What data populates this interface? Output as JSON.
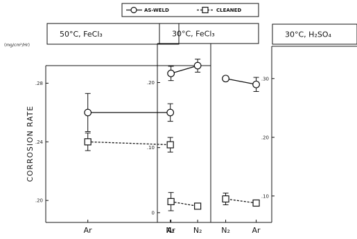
{
  "figure": {
    "units": "(mg/cm²/Hr)",
    "ylabel": "CORROSION RATE",
    "legend": {
      "as_weld": "AS-WELD",
      "cleaned": "CLEANED"
    }
  },
  "chart_data": [
    {
      "type": "line",
      "title": "50°C, FeCl₃",
      "categories": [
        "Ar",
        "N₂"
      ],
      "ylim": [
        0.185,
        0.292
      ],
      "yticks": [
        0.28,
        0.24,
        0.2
      ],
      "ytick_labels": [
        ".28",
        ".24",
        ".20"
      ],
      "series": [
        {
          "name": "AS-WELD",
          "values": [
            0.26,
            0.26
          ],
          "err": [
            0.013,
            0.006
          ]
        },
        {
          "name": "CLEANED",
          "values": [
            0.24,
            0.238
          ],
          "err": [
            0.006,
            0.005
          ]
        }
      ]
    },
    {
      "type": "line",
      "title": "30°C, FeCl₃",
      "categories": [
        "Ar",
        "N₂"
      ],
      "ylim": [
        -0.015,
        0.26
      ],
      "yticks": [
        0.2,
        0.1,
        0.0
      ],
      "ytick_labels": [
        ".20",
        ".10",
        "0"
      ],
      "series": [
        {
          "name": "AS-WELD",
          "values": [
            0.214,
            0.226
          ],
          "err": [
            0.011,
            0.01
          ]
        },
        {
          "name": "CLEANED",
          "values": [
            0.017,
            0.01
          ],
          "err": [
            0.014,
            0.003
          ]
        }
      ]
    },
    {
      "type": "line",
      "title": "30°C, H₂SO₄",
      "categories": [
        "Ar",
        "N₂"
      ],
      "ylim": [
        0.055,
        0.355
      ],
      "yticks": [
        0.3,
        0.2,
        0.1
      ],
      "ytick_labels": [
        ".30",
        ".20",
        ".10"
      ],
      "series": [
        {
          "name": "AS-WELD",
          "values": [
            0.29,
            0.3
          ],
          "err": [
            0.012,
            0.004
          ]
        },
        {
          "name": "CLEANED",
          "values": [
            0.088,
            0.095
          ],
          "err": [
            0.003,
            0.01
          ]
        }
      ]
    }
  ]
}
